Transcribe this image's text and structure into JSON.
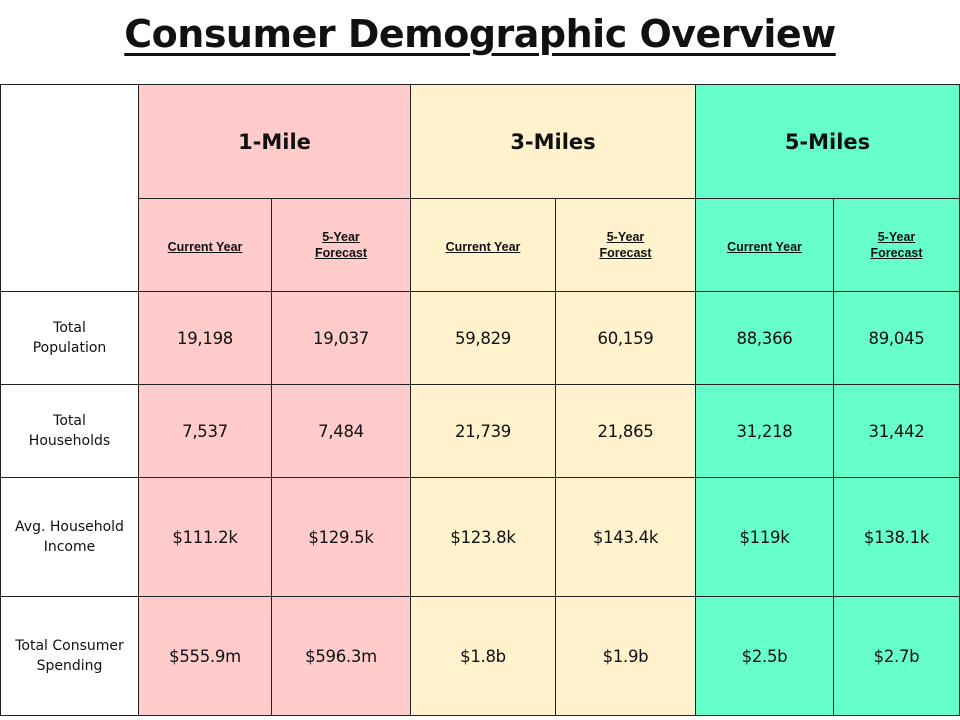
{
  "title": "Consumer Demographic Overview",
  "groups": [
    {
      "label": "1-Mile",
      "color": "#ffcccb"
    },
    {
      "label": "3-Miles",
      "color": "#fff2cc"
    },
    {
      "label": "5-Miles",
      "color": "#66ffcc"
    }
  ],
  "sub_headers": {
    "current": "Current Year",
    "forecast": "5-Year Forecast"
  },
  "rows": [
    {
      "label": "Total Population",
      "values": [
        "19,198",
        "19,037",
        "59,829",
        "60,159",
        "88,366",
        "89,045"
      ]
    },
    {
      "label": "Total Households",
      "values": [
        "7,537",
        "7,484",
        "21,739",
        "21,865",
        "31,218",
        "31,442"
      ]
    },
    {
      "label": "Avg. Household Income",
      "values": [
        "$111.2k",
        "$129.5k",
        "$123.8k",
        "$143.4k",
        "$119k",
        "$138.1k"
      ]
    },
    {
      "label": "Total Consumer Spending",
      "values": [
        "$555.9m",
        "$596.3m",
        "$1.8b",
        "$1.9b",
        "$2.5b",
        "$2.7b"
      ]
    }
  ]
}
